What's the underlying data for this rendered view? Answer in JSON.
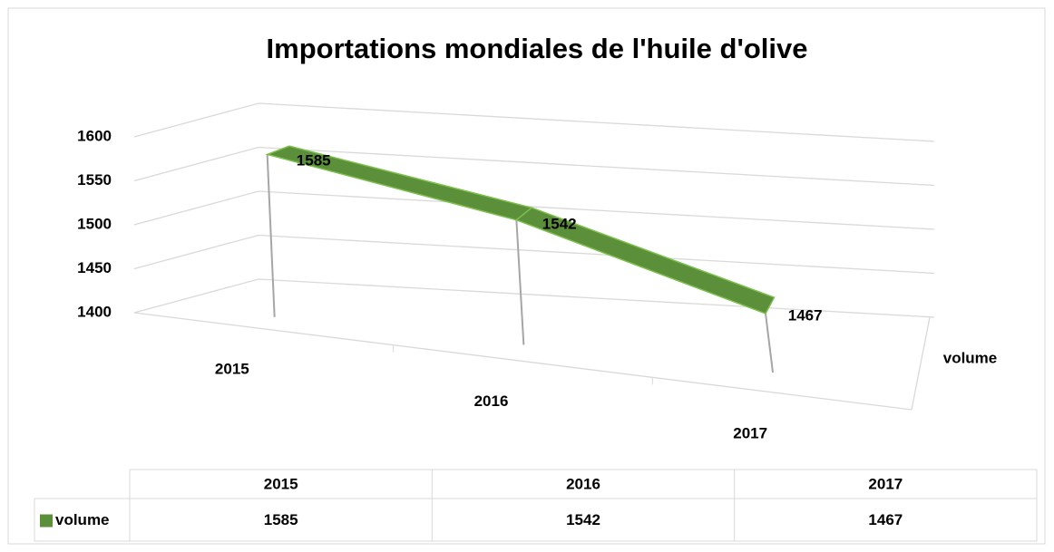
{
  "chart_data": {
    "type": "line3d",
    "title": "Importations mondiales de l'huile d'olive",
    "categories": [
      "2015",
      "2016",
      "2017"
    ],
    "series": [
      {
        "name": "volume",
        "color": "#5b8f3a",
        "values": [
          1585,
          1542,
          1467
        ]
      }
    ],
    "ylim": [
      1400,
      1600
    ],
    "yticks": [
      1400,
      1450,
      1500,
      1550,
      1600
    ],
    "grid": true,
    "data_table": true
  }
}
